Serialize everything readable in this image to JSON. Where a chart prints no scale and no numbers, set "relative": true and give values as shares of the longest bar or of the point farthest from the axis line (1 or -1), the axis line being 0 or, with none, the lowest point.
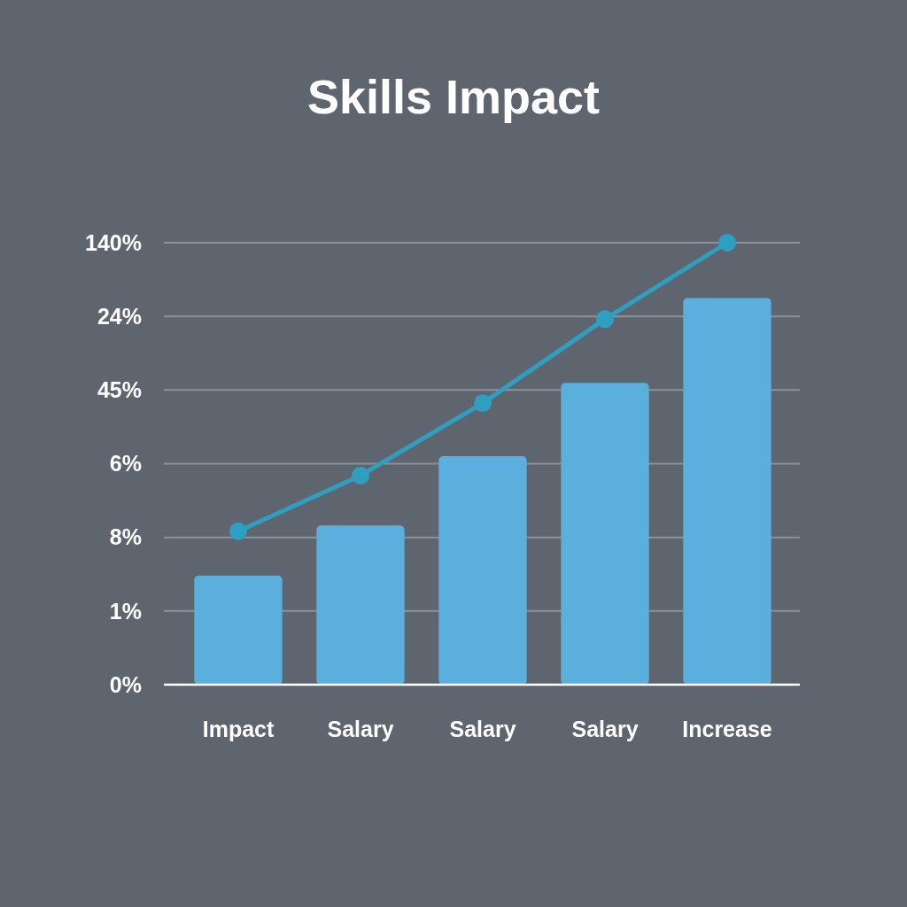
{
  "chart_data": {
    "type": "bar",
    "title": "Skills Impact",
    "categories": [
      "Impact",
      "Salary",
      "Salary",
      "Salary",
      "Increase"
    ],
    "series": [
      {
        "color": "#5aafdc",
        "values": [
          0.247,
          0.36,
          0.517,
          0.683,
          0.875
        ]
      },
      {
        "type": "line",
        "color": "#2e9fc0",
        "values": [
          0.347,
          0.473,
          0.637,
          0.827,
          1
        ]
      }
    ],
    "relative": true,
    "annotations": [
      "0%",
      "1%",
      "8%",
      "6%",
      "45%",
      "24%",
      "140%"
    ],
    "grid": "y",
    "marker": "circle",
    "line_style": "solid"
  }
}
